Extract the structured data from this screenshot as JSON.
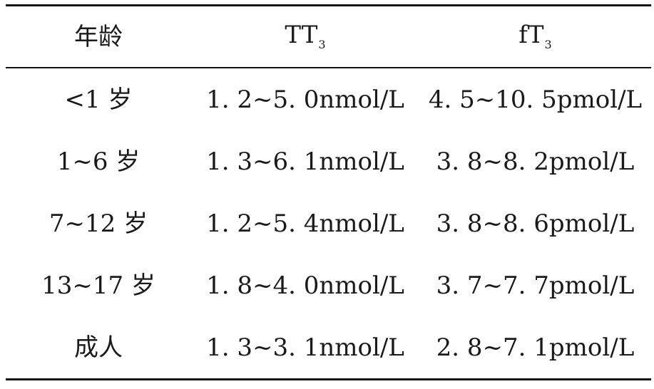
{
  "table": {
    "headers": {
      "age": "年龄",
      "tt3_main": "TT",
      "tt3_sub": "3",
      "ft3_main": "fT",
      "ft3_sub": "3"
    },
    "rows": [
      {
        "age": "<1 岁",
        "tt3": "1. 2~5. 0nmol/L",
        "ft3": "4. 5~10. 5pmol/L"
      },
      {
        "age": "1~6 岁",
        "tt3": "1. 3~6. 1nmol/L",
        "ft3": "3. 8~8. 2pmol/L"
      },
      {
        "age": "7~12 岁",
        "tt3": "1. 2~5. 4nmol/L",
        "ft3": "3. 8~8. 6pmol/L"
      },
      {
        "age": "13~17 岁",
        "tt3": "1. 8~4. 0nmol/L",
        "ft3": "3. 7~7. 7pmol/L"
      },
      {
        "age": "成人",
        "tt3": "1. 3~3. 1nmol/L",
        "ft3": "2. 8~7. 1pmol/L"
      }
    ]
  }
}
